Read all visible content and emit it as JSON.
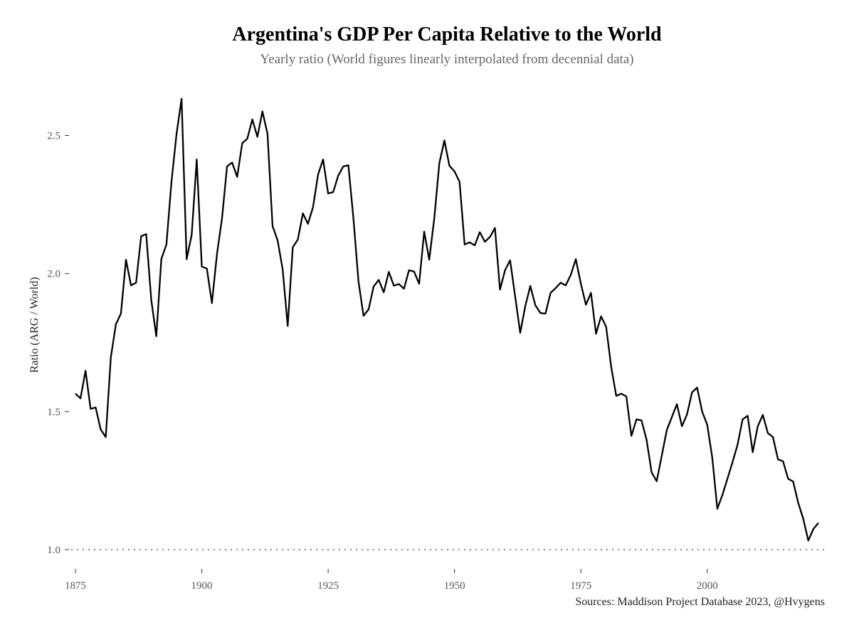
{
  "chart_data": {
    "type": "line",
    "title": "Argentina's GDP Per Capita Relative to the World",
    "subtitle": "Yearly ratio (World figures linearly interpolated from decennial data)",
    "xlabel": "",
    "ylabel": "Ratio (ARG / World)",
    "caption": "Sources: Maddison Project Database 2023, @Hvygens",
    "xlim": [
      1875,
      2022
    ],
    "ylim": [
      1.0,
      2.63
    ],
    "x_ticks": [
      1875,
      1900,
      1925,
      1950,
      1975,
      2000
    ],
    "y_ticks": [
      1.0,
      1.5,
      2.0,
      2.5
    ],
    "y_tick_labels": [
      "1.0",
      "1.5",
      "2.0",
      "2.5"
    ],
    "grid": false,
    "reference_line": {
      "y": 1.0,
      "style": "dotted",
      "color": "#888888"
    },
    "line_color": "#000000",
    "x": [
      1875,
      1876,
      1877,
      1878,
      1879,
      1880,
      1881,
      1882,
      1883,
      1884,
      1885,
      1886,
      1887,
      1888,
      1889,
      1890,
      1891,
      1892,
      1893,
      1894,
      1895,
      1896,
      1897,
      1898,
      1899,
      1900,
      1901,
      1902,
      1903,
      1904,
      1905,
      1906,
      1907,
      1908,
      1909,
      1910,
      1911,
      1912,
      1913,
      1914,
      1915,
      1916,
      1917,
      1918,
      1919,
      1920,
      1921,
      1922,
      1923,
      1924,
      1925,
      1926,
      1927,
      1928,
      1929,
      1930,
      1931,
      1932,
      1933,
      1934,
      1935,
      1936,
      1937,
      1938,
      1939,
      1940,
      1941,
      1942,
      1943,
      1944,
      1945,
      1946,
      1947,
      1948,
      1949,
      1950,
      1951,
      1952,
      1953,
      1954,
      1955,
      1956,
      1957,
      1958,
      1959,
      1960,
      1961,
      1962,
      1963,
      1964,
      1965,
      1966,
      1967,
      1968,
      1969,
      1970,
      1971,
      1972,
      1973,
      1974,
      1975,
      1976,
      1977,
      1978,
      1979,
      1980,
      1981,
      1982,
      1983,
      1984,
      1985,
      1986,
      1987,
      1988,
      1989,
      1990,
      1991,
      1992,
      1993,
      1994,
      1995,
      1996,
      1997,
      1998,
      1999,
      2000,
      2001,
      2002,
      2003,
      2004,
      2005,
      2006,
      2007,
      2008,
      2009,
      2010,
      2011,
      2012,
      2013,
      2014,
      2015,
      2016,
      2017,
      2018,
      2019,
      2020,
      2021,
      2022
    ],
    "series": [
      {
        "values": [
          1.565,
          1.548,
          1.648,
          1.51,
          1.515,
          1.435,
          1.408,
          1.696,
          1.816,
          1.855,
          2.05,
          1.957,
          1.967,
          2.135,
          2.143,
          1.905,
          1.773,
          2.053,
          2.105,
          2.332,
          2.505,
          2.633,
          2.052,
          2.14,
          2.413,
          2.025,
          2.018,
          1.893,
          2.07,
          2.2,
          2.388,
          2.402,
          2.35,
          2.472,
          2.488,
          2.558,
          2.495,
          2.587,
          2.506,
          2.172,
          2.12,
          2.015,
          1.81,
          2.095,
          2.123,
          2.218,
          2.18,
          2.24,
          2.358,
          2.413,
          2.29,
          2.295,
          2.355,
          2.388,
          2.392,
          2.2,
          1.972,
          1.847,
          1.87,
          1.953,
          1.977,
          1.932,
          2.006,
          1.956,
          1.962,
          1.945,
          2.012,
          2.007,
          1.963,
          2.152,
          2.05,
          2.2,
          2.4,
          2.482,
          2.39,
          2.37,
          2.332,
          2.105,
          2.113,
          2.102,
          2.15,
          2.115,
          2.132,
          2.165,
          1.942,
          2.012,
          2.048,
          1.917,
          1.785,
          1.882,
          1.955,
          1.885,
          1.857,
          1.855,
          1.93,
          1.947,
          1.967,
          1.957,
          1.995,
          2.052,
          1.963,
          1.887,
          1.93,
          1.782,
          1.845,
          1.807,
          1.662,
          1.557,
          1.565,
          1.555,
          1.412,
          1.472,
          1.468,
          1.398,
          1.28,
          1.248,
          1.34,
          1.433,
          1.48,
          1.527,
          1.447,
          1.49,
          1.57,
          1.587,
          1.5,
          1.452,
          1.333,
          1.148,
          1.198,
          1.257,
          1.317,
          1.38,
          1.472,
          1.485,
          1.353,
          1.447,
          1.488,
          1.422,
          1.408,
          1.327,
          1.32,
          1.257,
          1.247,
          1.17,
          1.112,
          1.033,
          1.075,
          1.097
        ]
      }
    ]
  }
}
